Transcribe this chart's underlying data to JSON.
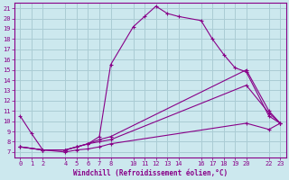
{
  "xlabel": "Windchill (Refroidissement éolien,°C)",
  "background_color": "#cce8ee",
  "grid_color": "#aaccd4",
  "line_color": "#880088",
  "xlim": [
    -0.5,
    23.5
  ],
  "ylim": [
    6.5,
    21.5
  ],
  "xticks": [
    0,
    1,
    2,
    4,
    5,
    6,
    7,
    8,
    10,
    11,
    12,
    13,
    14,
    16,
    17,
    18,
    19,
    20,
    22,
    23
  ],
  "yticks": [
    7,
    8,
    9,
    10,
    11,
    12,
    13,
    14,
    15,
    16,
    17,
    18,
    19,
    20,
    21
  ],
  "lines": [
    {
      "x": [
        0,
        1,
        2,
        4,
        5,
        6,
        7,
        8,
        10,
        11,
        12,
        13,
        14,
        16,
        17,
        18,
        19,
        20,
        22,
        23
      ],
      "y": [
        10.5,
        8.8,
        7.2,
        7.2,
        7.5,
        7.8,
        8.5,
        15.5,
        19.2,
        20.2,
        21.2,
        20.5,
        20.2,
        19.8,
        18.0,
        16.5,
        15.2,
        14.8,
        10.5,
        9.8
      ]
    },
    {
      "x": [
        0,
        2,
        4,
        5,
        6,
        7,
        8,
        20,
        22,
        23
      ],
      "y": [
        7.5,
        7.2,
        7.2,
        7.5,
        7.8,
        8.2,
        8.5,
        15.0,
        11.0,
        9.8
      ]
    },
    {
      "x": [
        0,
        2,
        4,
        5,
        6,
        7,
        8,
        20,
        22,
        23
      ],
      "y": [
        7.5,
        7.2,
        7.2,
        7.5,
        7.8,
        8.0,
        8.2,
        13.5,
        10.8,
        9.8
      ]
    },
    {
      "x": [
        0,
        2,
        4,
        5,
        6,
        7,
        8,
        20,
        22,
        23
      ],
      "y": [
        7.5,
        7.2,
        7.0,
        7.2,
        7.3,
        7.5,
        7.8,
        9.8,
        9.2,
        9.8
      ]
    }
  ]
}
